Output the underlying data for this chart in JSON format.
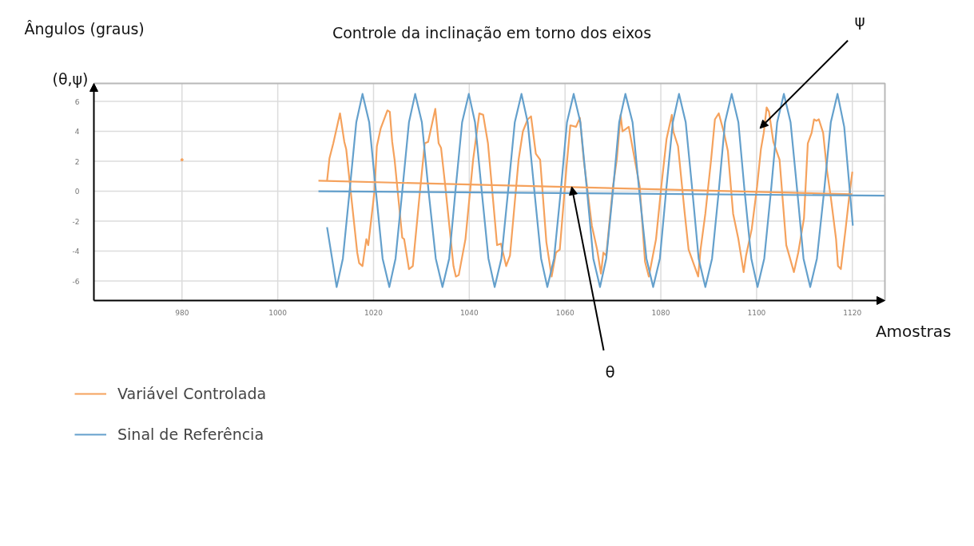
{
  "chart_data": {
    "type": "line",
    "title": "Controle da inclinação em torno dos eixos",
    "xlabel": "Amostras",
    "ylabel": "Ângulos (graus)\n(θ,ψ)",
    "xlim": [
      961.6,
      1126.8
    ],
    "xticks": [
      980,
      1000,
      1020,
      1040,
      1060,
      1080,
      1100,
      1120
    ],
    "ylim": [
      -7.3,
      7.2
    ],
    "yticks": [
      -6,
      -4,
      -2,
      0,
      2,
      4,
      6
    ],
    "grid": true,
    "legend": "bottom left",
    "line_style": "solid",
    "annotations": [
      {
        "text": "ψ",
        "x": 1100.7,
        "y": 4.2
      },
      {
        "text": "θ",
        "x": 1061.4,
        "y": 0.3
      }
    ],
    "series": [
      {
        "name": "Variável Controlada",
        "color": "#f5a25d",
        "x": [
          1010.3,
          1010.8,
          1011.6,
          1013.0,
          1013.9,
          1014.3,
          1016.6,
          1017.0,
          1017.7,
          1018.0,
          1018.5,
          1018.9,
          1020.2,
          1020.7,
          1021.5,
          1022.9,
          1023.4,
          1023.9,
          1024.4,
          1026.0,
          1026.4,
          1027.4,
          1028.2,
          1029.7,
          1030.7,
          1031.4,
          1032.9,
          1033.6,
          1034.1,
          1035.0,
          1036.7,
          1037.2,
          1037.8,
          1039.2,
          1040.8,
          1041.3,
          1042.1,
          1042.9,
          1043.9,
          1045.0,
          1045.8,
          1046.6,
          1047.7,
          1048.5,
          1050.3,
          1051.2,
          1052.2,
          1052.9,
          1053.9,
          1054.8,
          1056.1,
          1057.2,
          1058.1,
          1058.9,
          1060.3,
          1061.1,
          1062.3,
          1063.1,
          1063.9,
          1065.6,
          1066.7,
          1067.5,
          1068.0,
          1068.6,
          1070.0,
          1070.8,
          1071.6,
          1072.0,
          1073.3,
          1075.6,
          1076.7,
          1077.5,
          1079.0,
          1080.1,
          1081.2,
          1082.3,
          1082.6,
          1083.6,
          1085.0,
          1085.8,
          1087.8,
          1088.3,
          1089.3,
          1090.5,
          1091.3,
          1092.1,
          1093.2,
          1094.0,
          1095.1,
          1096.2,
          1097.3,
          1097.8,
          1099.0,
          1100.1,
          1100.9,
          1101.5,
          1102.1,
          1102.6,
          1103.5,
          1104.8,
          1106.2,
          1107.8,
          1108.7,
          1109.9,
          1110.7,
          1111.5,
          1112.0,
          1112.5,
          1113.0,
          1113.9,
          1114.7,
          1115.5,
          1116.6,
          1117.0,
          1117.6,
          1118.6,
          1119.4,
          1120.0
        ],
        "values": [
          0.7,
          2.2,
          3.2,
          5.2,
          3.3,
          2.8,
          -4.1,
          -4.8,
          -5.0,
          -4.3,
          -3.2,
          -3.6,
          0.0,
          3.0,
          4.2,
          5.4,
          5.3,
          3.3,
          2.1,
          -3.1,
          -3.2,
          -5.2,
          -5.0,
          0.0,
          3.2,
          3.3,
          5.5,
          3.2,
          2.9,
          0.3,
          -5.0,
          -5.7,
          -5.6,
          -3.2,
          2.1,
          3.3,
          5.2,
          5.1,
          3.2,
          -0.7,
          -3.6,
          -3.5,
          -5.0,
          -4.3,
          2.1,
          4.0,
          4.8,
          5.0,
          2.5,
          2.1,
          -3.4,
          -5.7,
          -4.1,
          -3.9,
          1.6,
          4.4,
          4.3,
          4.9,
          2.1,
          -2.3,
          -3.9,
          -5.5,
          -4.1,
          -4.3,
          0.3,
          2.1,
          5.1,
          4.0,
          4.3,
          0.3,
          -4.7,
          -5.7,
          -3.2,
          0.3,
          3.5,
          5.1,
          4.0,
          3.0,
          -1.5,
          -3.9,
          -5.7,
          -3.9,
          -1.5,
          2.1,
          4.8,
          5.2,
          3.9,
          2.7,
          -1.5,
          -3.2,
          -5.4,
          -4.3,
          -2.5,
          0.3,
          2.8,
          3.9,
          5.6,
          5.3,
          3.3,
          2.1,
          -3.6,
          -5.4,
          -4.1,
          -1.8,
          3.2,
          3.9,
          4.8,
          4.7,
          4.8,
          3.9,
          1.4,
          -0.4,
          -3.2,
          -5.0,
          -5.2,
          -2.5,
          -0.2,
          1.3
        ]
      },
      {
        "name": "Sinal de Referência",
        "color": "#64a0cc",
        "x": [
          1010.3,
          1012.3,
          1013.6,
          1015.0,
          1016.4,
          1017.7,
          1019.1,
          1020.5,
          1021.9,
          1023.3,
          1024.6,
          1026.0,
          1027.4,
          1028.7,
          1030.1,
          1031.5,
          1033.0,
          1034.4,
          1035.8,
          1037.1,
          1038.5,
          1039.9,
          1041.2,
          1042.6,
          1044.0,
          1045.3,
          1046.7,
          1048.1,
          1049.5,
          1050.9,
          1052.2,
          1053.6,
          1055.0,
          1056.3,
          1057.7,
          1059.1,
          1060.4,
          1061.8,
          1063.2,
          1064.6,
          1065.9,
          1067.3,
          1068.6,
          1070.0,
          1071.3,
          1072.6,
          1074.1,
          1075.5,
          1077.0,
          1078.4,
          1079.8,
          1081.1,
          1082.5,
          1083.8,
          1085.2,
          1086.6,
          1087.9,
          1089.3,
          1090.7,
          1092.1,
          1093.4,
          1094.8,
          1096.2,
          1097.5,
          1098.9,
          1100.2,
          1101.6,
          1103.0,
          1104.3,
          1105.7,
          1107.1,
          1108.5,
          1109.8,
          1111.2,
          1112.6,
          1114.1,
          1115.5,
          1116.9,
          1118.3,
          1120.1
        ],
        "values": [
          -2.4,
          -6.4,
          -4.5,
          0,
          4.6,
          6.5,
          4.6,
          0,
          -4.5,
          -6.4,
          -4.5,
          0,
          4.6,
          6.5,
          4.6,
          0,
          -4.5,
          -6.4,
          -4.5,
          0,
          4.6,
          6.5,
          4.6,
          0,
          -4.5,
          -6.4,
          -4.5,
          0,
          4.6,
          6.5,
          4.6,
          0,
          -4.5,
          -6.4,
          -4.5,
          0,
          4.6,
          6.5,
          4.6,
          0,
          -4.5,
          -6.4,
          -4.5,
          0,
          4.6,
          6.5,
          4.6,
          0,
          -4.5,
          -6.4,
          -4.5,
          0,
          4.6,
          6.5,
          4.6,
          0,
          -4.5,
          -6.4,
          -4.5,
          0,
          4.6,
          6.5,
          4.6,
          0,
          -4.5,
          -6.4,
          -4.5,
          0,
          4.6,
          6.5,
          4.6,
          0,
          -4.5,
          -6.4,
          -4.5,
          0,
          4.6,
          6.5,
          4.3,
          -2.3
        ]
      },
      {
        "type": "line",
        "color": "#f5a25d",
        "x": [
          1008.5,
          1120.0
        ],
        "values": [
          0.7,
          -0.2
        ]
      },
      {
        "type": "line",
        "color": "#64a0cc",
        "x": [
          1008.5,
          1126.7
        ],
        "values": [
          0.0,
          -0.3
        ]
      },
      {
        "type": "scatter",
        "marker": "circle",
        "color": "#f5a25d",
        "x": [
          980
        ],
        "values": [
          2.1
        ]
      }
    ]
  }
}
